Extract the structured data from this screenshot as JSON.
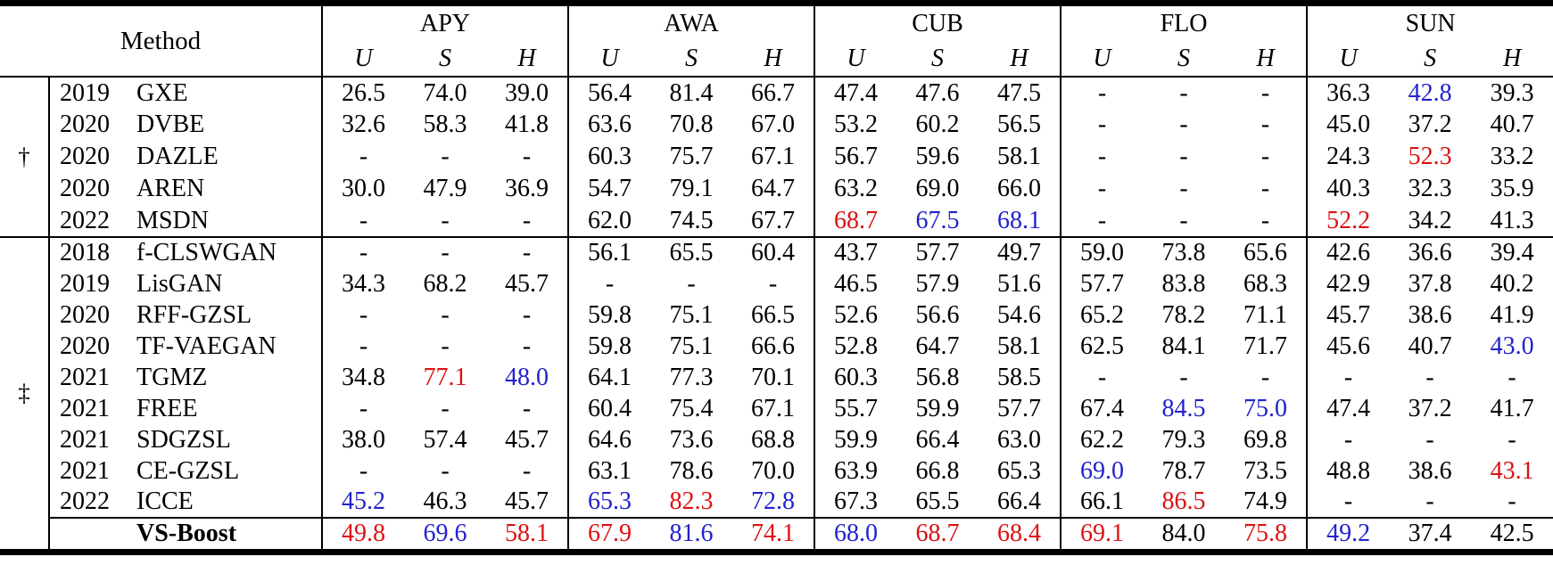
{
  "page": {
    "background": "#ffffff"
  },
  "table": {
    "method_header": "Method",
    "datasets": [
      "APY",
      "AWA",
      "CUB",
      "FLO",
      "SUN"
    ],
    "subheaders": [
      "U",
      "S",
      "H"
    ],
    "value_colors": {
      "red": "#dd1111",
      "blue": "#2222cc"
    },
    "groups": [
      {
        "symbol": "†",
        "rows": [
          {
            "year": "2019",
            "name": "GXE",
            "cells": [
              "26.5",
              "74.0",
              "39.0",
              "56.4",
              "81.4",
              "66.7",
              "47.4",
              "47.6",
              "47.5",
              "-",
              "-",
              "-",
              "36.3",
              {
                "v": "42.8",
                "c": "blue"
              },
              "39.3"
            ]
          },
          {
            "year": "2020",
            "name": "DVBE",
            "cells": [
              "32.6",
              "58.3",
              "41.8",
              "63.6",
              "70.8",
              "67.0",
              "53.2",
              "60.2",
              "56.5",
              "-",
              "-",
              "-",
              "45.0",
              "37.2",
              "40.7"
            ]
          },
          {
            "year": "2020",
            "name": "DAZLE",
            "cells": [
              "-",
              "-",
              "-",
              "60.3",
              "75.7",
              "67.1",
              "56.7",
              "59.6",
              "58.1",
              "-",
              "-",
              "-",
              "24.3",
              {
                "v": "52.3",
                "c": "red"
              },
              "33.2"
            ]
          },
          {
            "year": "2020",
            "name": "AREN",
            "cells": [
              "30.0",
              "47.9",
              "36.9",
              "54.7",
              "79.1",
              "64.7",
              "63.2",
              "69.0",
              "66.0",
              "-",
              "-",
              "-",
              "40.3",
              "32.3",
              "35.9"
            ]
          },
          {
            "year": "2022",
            "name": "MSDN",
            "cells": [
              "-",
              "-",
              "-",
              "62.0",
              "74.5",
              "67.7",
              {
                "v": "68.7",
                "c": "red"
              },
              {
                "v": "67.5",
                "c": "blue"
              },
              {
                "v": "68.1",
                "c": "blue"
              },
              "-",
              "-",
              "-",
              {
                "v": "52.2",
                "c": "red"
              },
              "34.2",
              "41.3"
            ]
          }
        ]
      },
      {
        "symbol": "‡",
        "rows": [
          {
            "year": "2018",
            "name": "f-CLSWGAN",
            "cells": [
              "-",
              "-",
              "-",
              "56.1",
              "65.5",
              "60.4",
              "43.7",
              "57.7",
              "49.7",
              "59.0",
              "73.8",
              "65.6",
              "42.6",
              "36.6",
              "39.4"
            ]
          },
          {
            "year": "2019",
            "name": "LisGAN",
            "cells": [
              "34.3",
              "68.2",
              "45.7",
              "-",
              "-",
              "-",
              "46.5",
              "57.9",
              "51.6",
              "57.7",
              "83.8",
              "68.3",
              "42.9",
              "37.8",
              "40.2"
            ]
          },
          {
            "year": "2020",
            "name": "RFF-GZSL",
            "cells": [
              "-",
              "-",
              "-",
              "59.8",
              "75.1",
              "66.5",
              "52.6",
              "56.6",
              "54.6",
              "65.2",
              "78.2",
              "71.1",
              "45.7",
              "38.6",
              "41.9"
            ]
          },
          {
            "year": "2020",
            "name": "TF-VAEGAN",
            "cells": [
              "-",
              "-",
              "-",
              "59.8",
              "75.1",
              "66.6",
              "52.8",
              "64.7",
              "58.1",
              "62.5",
              "84.1",
              "71.7",
              "45.6",
              "40.7",
              {
                "v": "43.0",
                "c": "blue"
              }
            ]
          },
          {
            "year": "2021",
            "name": "TGMZ",
            "cells": [
              "34.8",
              {
                "v": "77.1",
                "c": "red"
              },
              {
                "v": "48.0",
                "c": "blue"
              },
              "64.1",
              "77.3",
              "70.1",
              "60.3",
              "56.8",
              "58.5",
              "-",
              "-",
              "-",
              "-",
              "-",
              "-"
            ]
          },
          {
            "year": "2021",
            "name": "FREE",
            "cells": [
              "-",
              "-",
              "-",
              "60.4",
              "75.4",
              "67.1",
              "55.7",
              "59.9",
              "57.7",
              "67.4",
              {
                "v": "84.5",
                "c": "blue"
              },
              {
                "v": "75.0",
                "c": "blue"
              },
              "47.4",
              "37.2",
              "41.7"
            ]
          },
          {
            "year": "2021",
            "name": "SDGZSL",
            "cells": [
              "38.0",
              "57.4",
              "45.7",
              "64.6",
              "73.6",
              "68.8",
              "59.9",
              "66.4",
              "63.0",
              "62.2",
              "79.3",
              "69.8",
              "-",
              "-",
              "-"
            ]
          },
          {
            "year": "2021",
            "name": "CE-GZSL",
            "cells": [
              "-",
              "-",
              "-",
              "63.1",
              "78.6",
              "70.0",
              "63.9",
              "66.8",
              "65.3",
              {
                "v": "69.0",
                "c": "blue"
              },
              "78.7",
              "73.5",
              "48.8",
              "38.6",
              {
                "v": "43.1",
                "c": "red"
              }
            ]
          },
          {
            "year": "2022",
            "name": "ICCE",
            "cells": [
              {
                "v": "45.2",
                "c": "blue"
              },
              "46.3",
              "45.7",
              {
                "v": "65.3",
                "c": "blue"
              },
              {
                "v": "82.3",
                "c": "red"
              },
              {
                "v": "72.8",
                "c": "blue"
              },
              "67.3",
              "65.5",
              "66.4",
              "66.1",
              {
                "v": "86.5",
                "c": "red"
              },
              "74.9",
              "-",
              "-",
              "-"
            ]
          },
          {
            "year": "",
            "name": "VS-Boost",
            "bold": true,
            "sep": true,
            "cells": [
              {
                "v": "49.8",
                "c": "red"
              },
              {
                "v": "69.6",
                "c": "blue"
              },
              {
                "v": "58.1",
                "c": "red"
              },
              {
                "v": "67.9",
                "c": "red"
              },
              {
                "v": "81.6",
                "c": "blue"
              },
              {
                "v": "74.1",
                "c": "red"
              },
              {
                "v": "68.0",
                "c": "blue"
              },
              {
                "v": "68.7",
                "c": "red"
              },
              {
                "v": "68.4",
                "c": "red"
              },
              {
                "v": "69.1",
                "c": "red"
              },
              "84.0",
              {
                "v": "75.8",
                "c": "red"
              },
              {
                "v": "49.2",
                "c": "blue"
              },
              "37.4",
              "42.5"
            ]
          }
        ]
      }
    ]
  }
}
